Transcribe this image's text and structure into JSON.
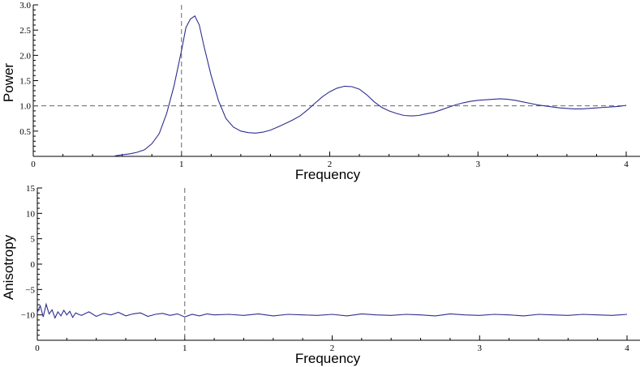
{
  "chart_data": [
    {
      "type": "line",
      "title": "",
      "xlabel": "Frequency",
      "ylabel": "Power",
      "xlim": [
        0,
        4
      ],
      "ylim": [
        0,
        3.0
      ],
      "x_ticks": [
        0,
        1,
        2,
        3,
        4
      ],
      "x_tick_labels": [
        "0",
        "1",
        "2",
        "3",
        "4"
      ],
      "y_ticks": [
        0.5,
        1.0,
        1.5,
        2.0,
        2.5,
        3.0
      ],
      "y_tick_labels": [
        "0.5",
        "1.0",
        "1.5",
        "2.0",
        "2.5",
        "3.0"
      ],
      "reference_lines": {
        "vertical_x": 1.0,
        "horizontal_y": 1.0,
        "style": "dashed"
      },
      "grid": false,
      "series": [
        {
          "color": "#2e2e8f",
          "x": [
            0.55,
            0.6,
            0.65,
            0.7,
            0.75,
            0.8,
            0.85,
            0.9,
            0.95,
            1.0,
            1.03,
            1.06,
            1.09,
            1.12,
            1.15,
            1.2,
            1.25,
            1.3,
            1.35,
            1.4,
            1.45,
            1.5,
            1.55,
            1.6,
            1.65,
            1.7,
            1.75,
            1.8,
            1.85,
            1.9,
            1.95,
            2.0,
            2.05,
            2.1,
            2.15,
            2.2,
            2.25,
            2.3,
            2.35,
            2.4,
            2.45,
            2.5,
            2.55,
            2.6,
            2.65,
            2.7,
            2.75,
            2.8,
            2.85,
            2.9,
            2.95,
            3.0,
            3.05,
            3.1,
            3.15,
            3.2,
            3.25,
            3.3,
            3.35,
            3.4,
            3.45,
            3.5,
            3.55,
            3.6,
            3.65,
            3.7,
            3.75,
            3.8,
            3.85,
            3.9,
            3.95,
            4.0
          ],
          "y": [
            0.01,
            0.03,
            0.05,
            0.08,
            0.13,
            0.25,
            0.45,
            0.85,
            1.4,
            2.1,
            2.55,
            2.72,
            2.78,
            2.6,
            2.2,
            1.6,
            1.1,
            0.75,
            0.58,
            0.5,
            0.47,
            0.46,
            0.48,
            0.52,
            0.58,
            0.65,
            0.72,
            0.8,
            0.92,
            1.05,
            1.18,
            1.28,
            1.35,
            1.39,
            1.38,
            1.33,
            1.22,
            1.08,
            0.97,
            0.9,
            0.85,
            0.81,
            0.8,
            0.81,
            0.84,
            0.87,
            0.92,
            0.97,
            1.02,
            1.06,
            1.09,
            1.11,
            1.12,
            1.13,
            1.14,
            1.13,
            1.11,
            1.08,
            1.05,
            1.02,
            1.0,
            0.98,
            0.96,
            0.95,
            0.94,
            0.94,
            0.95,
            0.96,
            0.97,
            0.98,
            0.99,
            1.01
          ]
        }
      ]
    },
    {
      "type": "line",
      "title": "",
      "xlabel": "Frequency",
      "ylabel": "Anisotropy",
      "xlim": [
        0,
        4
      ],
      "ylim": [
        -15,
        15
      ],
      "x_ticks": [
        0,
        1,
        2,
        3,
        4
      ],
      "x_tick_labels": [
        "0",
        "1",
        "2",
        "3",
        "4"
      ],
      "y_ticks": [
        -10,
        -5,
        0,
        5,
        10,
        15
      ],
      "y_tick_labels": [
        "−10",
        "−5",
        "0",
        "5",
        "10",
        "15"
      ],
      "reference_lines": {
        "vertical_x": 1.0,
        "style": "dashed"
      },
      "grid": false,
      "series": [
        {
          "color": "#2e2e8f",
          "x": [
            0.0,
            0.02,
            0.04,
            0.06,
            0.08,
            0.1,
            0.12,
            0.14,
            0.16,
            0.18,
            0.2,
            0.22,
            0.24,
            0.26,
            0.28,
            0.3,
            0.35,
            0.4,
            0.45,
            0.5,
            0.55,
            0.6,
            0.65,
            0.7,
            0.75,
            0.8,
            0.85,
            0.9,
            0.95,
            1.0,
            1.05,
            1.1,
            1.15,
            1.2,
            1.3,
            1.4,
            1.5,
            1.6,
            1.7,
            1.8,
            1.9,
            2.0,
            2.1,
            2.2,
            2.3,
            2.4,
            2.5,
            2.6,
            2.7,
            2.8,
            2.9,
            3.0,
            3.1,
            3.2,
            3.3,
            3.4,
            3.5,
            3.6,
            3.7,
            3.8,
            3.9,
            4.0
          ],
          "y": [
            -9.5,
            -8.2,
            -10.4,
            -7.9,
            -9.8,
            -9.0,
            -10.6,
            -9.4,
            -10.2,
            -9.1,
            -10.0,
            -9.3,
            -10.5,
            -9.6,
            -9.9,
            -10.1,
            -9.4,
            -10.3,
            -9.7,
            -10.0,
            -9.5,
            -10.2,
            -9.8,
            -9.6,
            -10.3,
            -9.9,
            -9.7,
            -10.1,
            -9.8,
            -10.4,
            -9.9,
            -10.2,
            -9.8,
            -10.0,
            -9.9,
            -10.1,
            -9.8,
            -10.2,
            -9.9,
            -10.0,
            -10.1,
            -9.9,
            -10.2,
            -9.8,
            -10.0,
            -10.1,
            -9.9,
            -10.0,
            -10.2,
            -9.8,
            -10.0,
            -10.1,
            -9.9,
            -10.0,
            -10.2,
            -9.9,
            -10.0,
            -10.1,
            -9.9,
            -10.0,
            -10.1,
            -9.9
          ]
        }
      ]
    }
  ]
}
